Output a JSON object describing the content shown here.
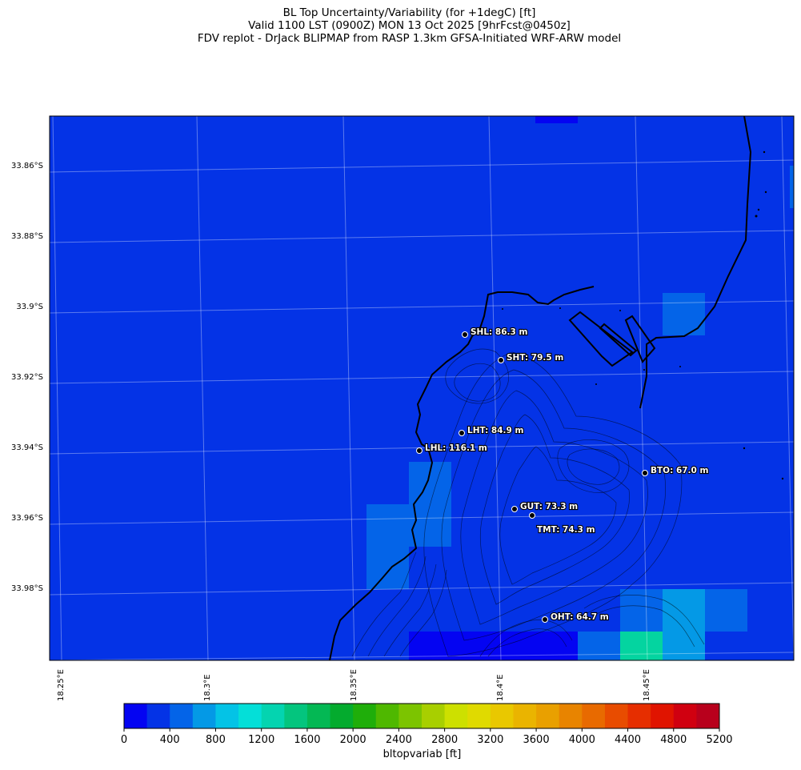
{
  "title": {
    "line1": "BL Top Uncertainty/Variability (for +1degC) [ft]",
    "line2": "Valid 1100 LST (0900Z) MON 13 Oct 2025 [9hrFcst@0450z]",
    "line3": "FDV replot - DrJack BLIPMAP from RASP 1.3km GFSA-Initiated WRF-ARW model"
  },
  "lat_labels": [
    "33.86°S",
    "33.88°S",
    "33.9°S",
    "33.92°S",
    "33.94°S",
    "33.96°S",
    "33.98°S"
  ],
  "lon_labels": [
    "18.25°E",
    "18.3°E",
    "18.35°E",
    "18.4°E",
    "18.45°E"
  ],
  "stations": [
    {
      "code": "SHL",
      "label": "SHL: 86.3 m"
    },
    {
      "code": "SHT",
      "label": "SHT: 79.5 m"
    },
    {
      "code": "LHT",
      "label": "LHT: 84.9 m"
    },
    {
      "code": "LHL",
      "label": "LHL: 116.1 m"
    },
    {
      "code": "BTO",
      "label": "BTO: 67.0 m"
    },
    {
      "code": "GUT",
      "label": "GUT: 73.3 m"
    },
    {
      "code": "TMT",
      "label": "TMT: 74.3 m"
    },
    {
      "code": "OHT",
      "label": "OHT: 64.7 m"
    }
  ],
  "colorbar": {
    "label": "bltopvariab [ft]",
    "ticks": [
      "0",
      "400",
      "800",
      "1200",
      "1600",
      "2000",
      "2400",
      "2800",
      "3200",
      "3600",
      "4000",
      "4400",
      "4800",
      "5200"
    ],
    "colors": [
      "#0404f2",
      "#0433e6",
      "#0464e8",
      "#0499e6",
      "#04c3e6",
      "#04dfd8",
      "#04d4b0",
      "#04c57e",
      "#04b854",
      "#04ab2e",
      "#1fae0a",
      "#4fb800",
      "#7cc400",
      "#a8cf00",
      "#cde000",
      "#e0da00",
      "#e9c800",
      "#eab400",
      "#e9a000",
      "#e88400",
      "#e86a00",
      "#e84c00",
      "#e62e00",
      "#e01400",
      "#d00010",
      "#b8001c"
    ]
  },
  "map_colors": {
    "background": "#0433e6",
    "cell_light": "#0464e8",
    "cell_lighter": "#0499e6",
    "cell_green": "#04d4a0",
    "cell_dark": "#0404f2"
  }
}
